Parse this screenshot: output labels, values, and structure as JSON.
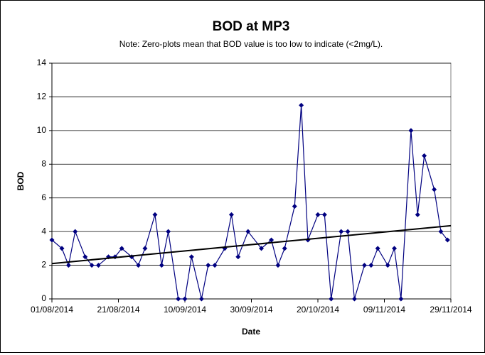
{
  "chart_data": {
    "type": "line",
    "title": "BOD at MP3",
    "subtitle": "Note: Zero-plots mean that BOD value is too low to indicate (<2mg/L).",
    "x_label": "Date",
    "y_label": "BOD",
    "x": [
      "01/08/2014",
      "04/08/2014",
      "06/08/2014",
      "08/08/2014",
      "11/08/2014",
      "13/08/2014",
      "15/08/2014",
      "18/08/2014",
      "20/08/2014",
      "22/08/2014",
      "25/08/2014",
      "27/08/2014",
      "29/08/2014",
      "01/09/2014",
      "03/09/2014",
      "05/09/2014",
      "08/09/2014",
      "10/09/2014",
      "12/09/2014",
      "15/09/2014",
      "17/09/2014",
      "19/09/2014",
      "22/09/2014",
      "24/09/2014",
      "26/09/2014",
      "29/09/2014",
      "03/10/2014",
      "06/10/2014",
      "08/10/2014",
      "10/10/2014",
      "13/10/2014",
      "15/10/2014",
      "17/10/2014",
      "20/10/2014",
      "22/10/2014",
      "24/10/2014",
      "27/10/2014",
      "29/10/2014",
      "31/10/2014",
      "03/11/2014",
      "05/11/2014",
      "07/11/2014",
      "10/11/2014",
      "12/11/2014",
      "14/11/2014",
      "17/11/2014",
      "19/11/2014",
      "21/11/2014",
      "24/11/2014",
      "26/11/2014",
      "28/11/2014"
    ],
    "series": [
      {
        "name": "BOD",
        "color": "#000080",
        "values": [
          3.5,
          3,
          2,
          4,
          2.5,
          2,
          2,
          2.5,
          2.5,
          3,
          2.5,
          2,
          3,
          5,
          2,
          4,
          0,
          0,
          2.5,
          0,
          2,
          2,
          3,
          5,
          2.5,
          4,
          3,
          3.5,
          2,
          3,
          5.5,
          11.5,
          3.5,
          5,
          5,
          0,
          4,
          4,
          0,
          2,
          2,
          3,
          2,
          3,
          0,
          10,
          5,
          8.5,
          6.5,
          4,
          3.5
        ]
      }
    ],
    "trend": {
      "color": "#000000",
      "values": [
        2.1,
        4.35
      ]
    },
    "xlim": [
      "01/08/2014",
      "29/11/2014"
    ],
    "xticks": [
      "01/08/2014",
      "21/08/2014",
      "10/09/2014",
      "30/09/2014",
      "20/10/2014",
      "09/11/2014",
      "29/11/2014"
    ],
    "ylim": [
      0,
      14
    ],
    "yticks": [
      0,
      2,
      4,
      6,
      8,
      10,
      12,
      14
    ],
    "grid": true
  }
}
